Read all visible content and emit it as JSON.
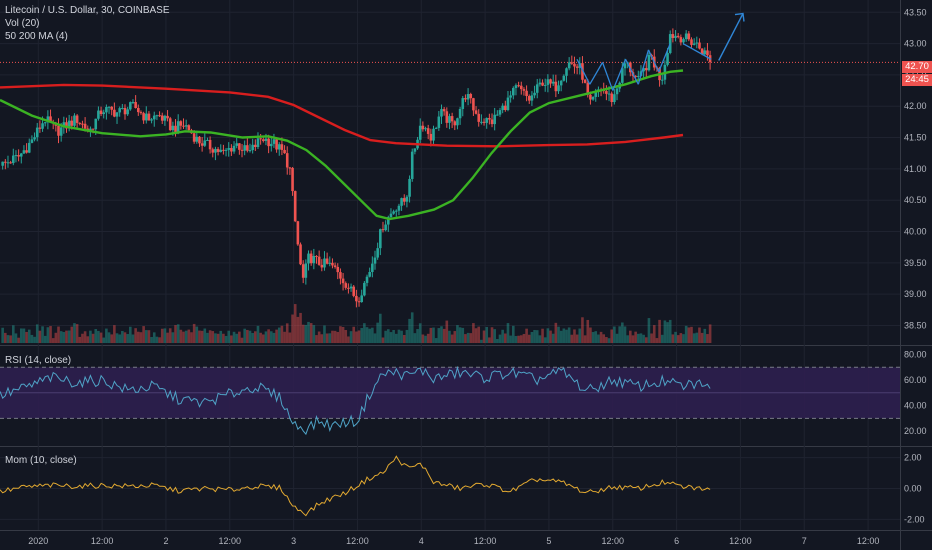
{
  "header": {
    "symbol_line": "Litecoin / U.S. Dollar, 30, COINBASE",
    "vol_label": "Vol (20)",
    "ma_label": "50 200 MA (4)"
  },
  "price_tags": {
    "last_price": "42.70",
    "countdown": "24:45"
  },
  "rsi_header": "RSI (14, close)",
  "mom_header": "Mom (10, close)",
  "colors": {
    "background": "#131722",
    "up": "#26a69a",
    "down": "#ef5350",
    "ma50": "#3bb323",
    "ma200": "#d81e1e",
    "rsi": "#4fa3c7",
    "rsi_band": "#2d1f4f",
    "momentum": "#e2a931",
    "annotation": "#2f86d6"
  },
  "chart_data": [
    {
      "type": "candlestick",
      "symbol": "Litecoin / U.S. Dollar",
      "interval": "30",
      "exchange": "COINBASE",
      "ylim": [
        38.3,
        43.6
      ],
      "y_ticks": [
        "43.50",
        "43.00",
        "42.50",
        "42.00",
        "41.50",
        "41.00",
        "40.50",
        "40.00",
        "39.50",
        "39.00",
        "38.50"
      ],
      "x_ticks": [
        "2020",
        "12:00",
        "2",
        "12:00",
        "3",
        "12:00",
        "4",
        "12:00",
        "5",
        "12:00",
        "6",
        "12:00",
        "7",
        "12:00"
      ],
      "x_range_days": [
        -0.3,
        6.75
      ],
      "ma50": [
        [
          -0.3,
          42.1
        ],
        [
          -0.05,
          41.85
        ],
        [
          0.2,
          41.68
        ],
        [
          0.5,
          41.57
        ],
        [
          0.8,
          41.52
        ],
        [
          1.0,
          41.55
        ],
        [
          1.15,
          41.6
        ],
        [
          1.35,
          41.58
        ],
        [
          1.6,
          41.5
        ],
        [
          1.8,
          41.52
        ],
        [
          1.95,
          41.45
        ],
        [
          2.1,
          41.3
        ],
        [
          2.25,
          41.05
        ],
        [
          2.4,
          40.75
        ],
        [
          2.55,
          40.45
        ],
        [
          2.65,
          40.25
        ],
        [
          2.75,
          40.2
        ],
        [
          2.9,
          40.25
        ],
        [
          3.1,
          40.35
        ],
        [
          3.25,
          40.5
        ],
        [
          3.4,
          40.85
        ],
        [
          3.55,
          41.25
        ],
        [
          3.7,
          41.6
        ],
        [
          3.85,
          41.9
        ],
        [
          4.0,
          42.05
        ],
        [
          4.2,
          42.15
        ],
        [
          4.4,
          42.25
        ],
        [
          4.6,
          42.35
        ],
        [
          4.8,
          42.48
        ],
        [
          4.95,
          42.55
        ],
        [
          5.05,
          42.57
        ]
      ],
      "ma200": [
        [
          -0.3,
          42.3
        ],
        [
          0.2,
          42.34
        ],
        [
          0.5,
          42.33
        ],
        [
          1.0,
          42.28
        ],
        [
          1.5,
          42.22
        ],
        [
          1.8,
          42.15
        ],
        [
          2.0,
          42.02
        ],
        [
          2.2,
          41.82
        ],
        [
          2.4,
          41.62
        ],
        [
          2.6,
          41.46
        ],
        [
          2.8,
          41.41
        ],
        [
          3.2,
          41.37
        ],
        [
          3.6,
          41.36
        ],
        [
          4.0,
          41.38
        ],
        [
          4.3,
          41.39
        ],
        [
          4.6,
          41.43
        ],
        [
          4.9,
          41.5
        ],
        [
          5.05,
          41.54
        ]
      ],
      "candle_path": [
        [
          -0.3,
          41.05
        ],
        [
          -0.15,
          41.2
        ],
        [
          -0.05,
          41.45
        ],
        [
          0.05,
          41.8
        ],
        [
          0.15,
          41.6
        ],
        [
          0.3,
          41.8
        ],
        [
          0.4,
          41.6
        ],
        [
          0.5,
          41.95
        ],
        [
          0.62,
          41.9
        ],
        [
          0.75,
          42.0
        ],
        [
          0.85,
          41.8
        ],
        [
          0.95,
          41.85
        ],
        [
          1.05,
          41.65
        ],
        [
          1.15,
          41.7
        ],
        [
          1.25,
          41.45
        ],
        [
          1.35,
          41.35
        ],
        [
          1.45,
          41.25
        ],
        [
          1.55,
          41.4
        ],
        [
          1.65,
          41.25
        ],
        [
          1.75,
          41.5
        ],
        [
          1.85,
          41.4
        ],
        [
          1.92,
          41.25
        ],
        [
          1.97,
          41.0
        ],
        [
          2.02,
          40.0
        ],
        [
          2.07,
          39.2
        ],
        [
          2.12,
          39.6
        ],
        [
          2.2,
          39.5
        ],
        [
          2.3,
          39.45
        ],
        [
          2.4,
          39.2
        ],
        [
          2.5,
          38.9
        ],
        [
          2.6,
          39.4
        ],
        [
          2.7,
          40.1
        ],
        [
          2.8,
          40.4
        ],
        [
          2.88,
          40.5
        ],
        [
          2.93,
          41.2
        ],
        [
          3.0,
          41.75
        ],
        [
          3.08,
          41.5
        ],
        [
          3.15,
          41.9
        ],
        [
          3.25,
          41.7
        ],
        [
          3.35,
          42.2
        ],
        [
          3.45,
          41.8
        ],
        [
          3.55,
          41.75
        ],
        [
          3.65,
          42.0
        ],
        [
          3.75,
          42.3
        ],
        [
          3.85,
          42.1
        ],
        [
          3.95,
          42.4
        ],
        [
          4.05,
          42.3
        ],
        [
          4.15,
          42.7
        ],
        [
          4.25,
          42.6
        ],
        [
          4.32,
          42.0
        ],
        [
          4.4,
          42.3
        ],
        [
          4.5,
          42.1
        ],
        [
          4.6,
          42.7
        ],
        [
          4.7,
          42.4
        ],
        [
          4.8,
          42.8
        ],
        [
          4.88,
          42.4
        ],
        [
          4.95,
          43.15
        ],
        [
          5.05,
          43.1
        ],
        [
          5.15,
          43.0
        ],
        [
          5.22,
          42.85
        ],
        [
          5.28,
          42.7
        ]
      ],
      "last_price": 42.7,
      "ma_50_label": "50",
      "ma_200_label": "200"
    },
    {
      "type": "line",
      "name": "RSI (14, close)",
      "ylim": [
        13,
        82
      ],
      "y_ticks": [
        "80.00",
        "60.00",
        "40.00",
        "20.00"
      ],
      "band": [
        30,
        70
      ],
      "values": [
        [
          -0.3,
          48
        ],
        [
          -0.1,
          54
        ],
        [
          0.1,
          62
        ],
        [
          0.3,
          58
        ],
        [
          0.5,
          60
        ],
        [
          0.7,
          52
        ],
        [
          0.9,
          55
        ],
        [
          1.1,
          45
        ],
        [
          1.3,
          42
        ],
        [
          1.5,
          49
        ],
        [
          1.7,
          55
        ],
        [
          1.9,
          46
        ],
        [
          2.0,
          25
        ],
        [
          2.1,
          22
        ],
        [
          2.2,
          28
        ],
        [
          2.3,
          24
        ],
        [
          2.4,
          27
        ],
        [
          2.5,
          28
        ],
        [
          2.6,
          50
        ],
        [
          2.7,
          65
        ],
        [
          2.8,
          66
        ],
        [
          2.9,
          63
        ],
        [
          3.0,
          68
        ],
        [
          3.1,
          61
        ],
        [
          3.3,
          66
        ],
        [
          3.5,
          62
        ],
        [
          3.7,
          66
        ],
        [
          3.9,
          60
        ],
        [
          4.1,
          67
        ],
        [
          4.3,
          51
        ],
        [
          4.5,
          60
        ],
        [
          4.7,
          55
        ],
        [
          4.9,
          59
        ],
        [
          5.05,
          55
        ],
        [
          5.2,
          58
        ],
        [
          5.28,
          49
        ]
      ]
    },
    {
      "type": "line",
      "name": "Mom (10, close)",
      "ylim": [
        -2.3,
        2.3
      ],
      "y_ticks": [
        "2.00",
        "0.00",
        "-2.00"
      ],
      "values": [
        [
          -0.3,
          -0.2
        ],
        [
          -0.1,
          0.1
        ],
        [
          0.1,
          0.2
        ],
        [
          0.3,
          0.15
        ],
        [
          0.5,
          0.2
        ],
        [
          0.7,
          0.15
        ],
        [
          0.9,
          0.2
        ],
        [
          1.1,
          -0.15
        ],
        [
          1.3,
          0.0
        ],
        [
          1.5,
          -0.1
        ],
        [
          1.7,
          0.15
        ],
        [
          1.9,
          0.05
        ],
        [
          2.0,
          -1.2
        ],
        [
          2.1,
          -1.6
        ],
        [
          2.2,
          -1.0
        ],
        [
          2.3,
          -0.6
        ],
        [
          2.4,
          -0.3
        ],
        [
          2.5,
          0.2
        ],
        [
          2.6,
          0.7
        ],
        [
          2.7,
          1.0
        ],
        [
          2.8,
          2.0
        ],
        [
          2.9,
          1.3
        ],
        [
          3.0,
          1.6
        ],
        [
          3.1,
          0.4
        ],
        [
          3.3,
          0.0
        ],
        [
          3.5,
          0.3
        ],
        [
          3.7,
          -0.2
        ],
        [
          3.9,
          0.6
        ],
        [
          4.1,
          0.4
        ],
        [
          4.3,
          -0.3
        ],
        [
          4.5,
          0.1
        ],
        [
          4.7,
          0.0
        ],
        [
          4.9,
          0.4
        ],
        [
          5.05,
          0.1
        ],
        [
          5.2,
          0.0
        ],
        [
          5.28,
          -0.2
        ]
      ]
    }
  ]
}
